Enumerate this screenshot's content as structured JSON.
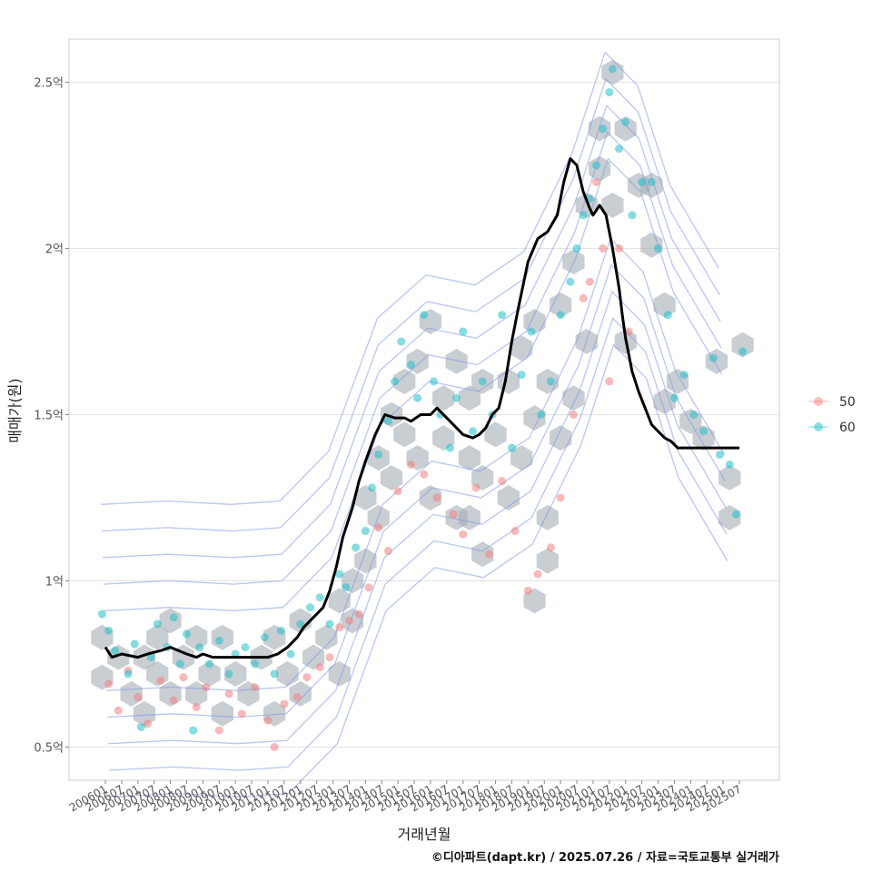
{
  "chart_data": {
    "type": "scatter",
    "title": "",
    "xlabel": "거래년월",
    "ylabel": "매매가(원)",
    "caption": "©디아파트(dapt.kr) / 2025.07.26 / 자료=국토교통부 실거래가",
    "ylim": [
      0.4,
      2.63
    ],
    "y_ticks": [
      {
        "value": 0.5,
        "label": "0.5억"
      },
      {
        "value": 1.0,
        "label": "1억"
      },
      {
        "value": 1.5,
        "label": "1.5억"
      },
      {
        "value": 2.0,
        "label": "2억"
      },
      {
        "value": 2.5,
        "label": "2.5억"
      }
    ],
    "x_range": [
      2005.0,
      2027.2
    ],
    "x_ticks": [
      "200601",
      "200607",
      "200701",
      "200707",
      "200801",
      "200807",
      "200901",
      "200907",
      "201001",
      "201007",
      "201101",
      "201107",
      "201201",
      "201207",
      "201301",
      "201307",
      "201401",
      "201407",
      "201501",
      "201507",
      "201601",
      "201607",
      "201701",
      "201707",
      "201801",
      "201807",
      "201901",
      "201907",
      "202001",
      "202007",
      "202101",
      "202107",
      "202201",
      "202207",
      "202301",
      "202307",
      "202401",
      "202407",
      "202501",
      "202507"
    ],
    "legend": {
      "position": "right",
      "entries": [
        {
          "label": "50",
          "color": "#f08080"
        },
        {
          "label": "60",
          "color": "#20c0c8"
        }
      ]
    },
    "layers": [
      "hexbin",
      "density-contour",
      "points",
      "trend-line"
    ],
    "trend_line": {
      "name": "moving-average",
      "color": "#000000",
      "x": [
        2006.0,
        2006.2,
        2006.5,
        2007.0,
        2007.3,
        2007.7,
        2008.0,
        2008.5,
        2008.8,
        2009.0,
        2009.3,
        2009.6,
        2010.0,
        2010.4,
        2010.7,
        2011.0,
        2011.3,
        2011.6,
        2011.9,
        2012.1,
        2012.4,
        2012.7,
        2012.9,
        2013.1,
        2013.3,
        2013.6,
        2013.8,
        2014.0,
        2014.3,
        2014.6,
        2014.9,
        2015.2,
        2015.4,
        2015.7,
        2016.0,
        2016.2,
        2016.5,
        2016.8,
        2017.0,
        2017.3,
        2017.5,
        2017.7,
        2017.9,
        2018.1,
        2018.3,
        2018.5,
        2018.7,
        2019.0,
        2019.3,
        2019.6,
        2019.9,
        2020.1,
        2020.3,
        2020.5,
        2020.7,
        2020.9,
        2021.0,
        2021.2,
        2021.4,
        2021.6,
        2021.8,
        2021.9,
        2022.0,
        2022.2,
        2022.4,
        2022.6,
        2022.8,
        2023.0,
        2023.2,
        2023.4,
        2023.6,
        2023.8,
        2024.0,
        2024.2,
        2024.4,
        2024.6,
        2024.9,
        2025.2,
        2025.5
      ],
      "y": [
        0.8,
        0.77,
        0.78,
        0.77,
        0.78,
        0.79,
        0.8,
        0.78,
        0.77,
        0.78,
        0.77,
        0.77,
        0.77,
        0.77,
        0.77,
        0.77,
        0.78,
        0.8,
        0.83,
        0.86,
        0.89,
        0.92,
        0.97,
        1.04,
        1.13,
        1.22,
        1.3,
        1.36,
        1.44,
        1.5,
        1.49,
        1.49,
        1.48,
        1.5,
        1.5,
        1.52,
        1.49,
        1.46,
        1.44,
        1.43,
        1.44,
        1.46,
        1.5,
        1.52,
        1.6,
        1.72,
        1.82,
        1.96,
        2.03,
        2.05,
        2.1,
        2.2,
        2.27,
        2.25,
        2.17,
        2.12,
        2.1,
        2.13,
        2.1,
        2.0,
        1.88,
        1.8,
        1.73,
        1.63,
        1.57,
        1.52,
        1.47,
        1.45,
        1.43,
        1.42,
        1.4,
        1.4,
        1.4,
        1.4,
        1.4,
        1.4,
        1.4,
        1.4,
        1.4
      ]
    },
    "hexbin": {
      "color": "#a8b0b8",
      "centers_xy": [
        [
          2005.9,
          0.83
        ],
        [
          2005.9,
          0.71
        ],
        [
          2006.4,
          0.77
        ],
        [
          2006.8,
          0.66
        ],
        [
          2007.2,
          0.6
        ],
        [
          2007.2,
          0.77
        ],
        [
          2007.6,
          0.83
        ],
        [
          2007.6,
          0.72
        ],
        [
          2008.0,
          0.66
        ],
        [
          2008.0,
          0.88
        ],
        [
          2008.4,
          0.77
        ],
        [
          2008.8,
          0.66
        ],
        [
          2008.8,
          0.83
        ],
        [
          2009.2,
          0.72
        ],
        [
          2009.6,
          0.6
        ],
        [
          2009.6,
          0.83
        ],
        [
          2010.0,
          0.72
        ],
        [
          2010.4,
          0.66
        ],
        [
          2010.8,
          0.77
        ],
        [
          2011.2,
          0.6
        ],
        [
          2011.2,
          0.83
        ],
        [
          2011.6,
          0.72
        ],
        [
          2012.0,
          0.66
        ],
        [
          2012.0,
          0.88
        ],
        [
          2012.4,
          0.77
        ],
        [
          2012.8,
          0.83
        ],
        [
          2013.2,
          0.94
        ],
        [
          2013.2,
          0.72
        ],
        [
          2013.6,
          1.0
        ],
        [
          2013.6,
          0.88
        ],
        [
          2014.0,
          1.06
        ],
        [
          2014.0,
          1.25
        ],
        [
          2014.4,
          1.19
        ],
        [
          2014.4,
          1.37
        ],
        [
          2014.8,
          1.31
        ],
        [
          2014.8,
          1.5
        ],
        [
          2015.2,
          1.6
        ],
        [
          2015.2,
          1.44
        ],
        [
          2015.6,
          1.66
        ],
        [
          2015.6,
          1.37
        ],
        [
          2016.0,
          1.78
        ],
        [
          2016.0,
          1.25
        ],
        [
          2016.4,
          1.55
        ],
        [
          2016.4,
          1.43
        ],
        [
          2016.8,
          1.66
        ],
        [
          2016.8,
          1.19
        ],
        [
          2017.2,
          1.55
        ],
        [
          2017.2,
          1.37
        ],
        [
          2017.6,
          1.6
        ],
        [
          2017.6,
          1.31
        ],
        [
          2018.0,
          1.44
        ],
        [
          2018.4,
          1.6
        ],
        [
          2018.4,
          1.25
        ],
        [
          2018.8,
          1.7
        ],
        [
          2018.8,
          1.37
        ],
        [
          2019.2,
          1.78
        ],
        [
          2019.2,
          1.49
        ],
        [
          2019.6,
          1.6
        ],
        [
          2019.6,
          1.19
        ],
        [
          2020.0,
          1.83
        ],
        [
          2020.0,
          1.43
        ],
        [
          2020.4,
          1.96
        ],
        [
          2020.4,
          1.55
        ],
        [
          2020.8,
          2.13
        ],
        [
          2020.8,
          1.72
        ],
        [
          2021.2,
          2.24
        ],
        [
          2021.2,
          2.36
        ],
        [
          2021.6,
          2.53
        ],
        [
          2021.6,
          2.13
        ],
        [
          2022.0,
          2.36
        ],
        [
          2022.0,
          1.72
        ],
        [
          2022.4,
          2.19
        ],
        [
          2022.8,
          2.19
        ],
        [
          2022.8,
          2.01
        ],
        [
          2023.2,
          1.83
        ],
        [
          2023.2,
          1.54
        ],
        [
          2023.6,
          1.6
        ],
        [
          2024.0,
          1.48
        ],
        [
          2024.4,
          1.43
        ],
        [
          2024.8,
          1.66
        ],
        [
          2025.2,
          1.31
        ],
        [
          2025.2,
          1.19
        ],
        [
          2025.6,
          1.71
        ],
        [
          2017.6,
          1.08
        ],
        [
          2019.2,
          0.94
        ],
        [
          2019.6,
          1.06
        ],
        [
          2017.2,
          1.19
        ]
      ]
    },
    "points_50": [
      [
        2006.1,
        0.69
      ],
      [
        2006.4,
        0.61
      ],
      [
        2006.7,
        0.73
      ],
      [
        2007.0,
        0.65
      ],
      [
        2007.3,
        0.57
      ],
      [
        2007.7,
        0.7
      ],
      [
        2008.1,
        0.64
      ],
      [
        2008.4,
        0.71
      ],
      [
        2008.8,
        0.62
      ],
      [
        2009.1,
        0.68
      ],
      [
        2009.5,
        0.55
      ],
      [
        2009.8,
        0.66
      ],
      [
        2010.2,
        0.6
      ],
      [
        2010.6,
        0.68
      ],
      [
        2011.0,
        0.58
      ],
      [
        2011.2,
        0.5
      ],
      [
        2011.5,
        0.63
      ],
      [
        2011.9,
        0.65
      ],
      [
        2012.2,
        0.71
      ],
      [
        2012.6,
        0.74
      ],
      [
        2012.9,
        0.77
      ],
      [
        2013.2,
        0.86
      ],
      [
        2013.5,
        0.88
      ],
      [
        2013.8,
        0.9
      ],
      [
        2014.1,
        0.98
      ],
      [
        2014.4,
        1.16
      ],
      [
        2014.7,
        1.09
      ],
      [
        2015.0,
        1.27
      ],
      [
        2015.4,
        1.35
      ],
      [
        2015.8,
        1.32
      ],
      [
        2016.2,
        1.25
      ],
      [
        2016.7,
        1.2
      ],
      [
        2017.0,
        1.14
      ],
      [
        2017.4,
        1.28
      ],
      [
        2017.8,
        1.08
      ],
      [
        2018.2,
        1.3
      ],
      [
        2018.6,
        1.15
      ],
      [
        2019.0,
        0.97
      ],
      [
        2019.3,
        1.02
      ],
      [
        2019.7,
        1.1
      ],
      [
        2020.0,
        1.25
      ],
      [
        2020.4,
        1.5
      ],
      [
        2020.7,
        1.85
      ],
      [
        2020.9,
        1.9
      ],
      [
        2021.1,
        2.2
      ],
      [
        2021.3,
        2.0
      ],
      [
        2021.5,
        1.6
      ],
      [
        2021.8,
        2.0
      ],
      [
        2022.1,
        1.75
      ]
    ],
    "points_60": [
      [
        2005.9,
        0.9
      ],
      [
        2006.1,
        0.85
      ],
      [
        2006.3,
        0.79
      ],
      [
        2006.7,
        0.72
      ],
      [
        2006.9,
        0.81
      ],
      [
        2007.1,
        0.56
      ],
      [
        2007.4,
        0.77
      ],
      [
        2007.6,
        0.87
      ],
      [
        2007.9,
        0.8
      ],
      [
        2008.1,
        0.89
      ],
      [
        2008.3,
        0.75
      ],
      [
        2008.5,
        0.84
      ],
      [
        2008.7,
        0.55
      ],
      [
        2008.9,
        0.8
      ],
      [
        2009.2,
        0.75
      ],
      [
        2009.5,
        0.82
      ],
      [
        2009.8,
        0.72
      ],
      [
        2010.0,
        0.78
      ],
      [
        2010.3,
        0.8
      ],
      [
        2010.6,
        0.75
      ],
      [
        2010.9,
        0.83
      ],
      [
        2011.2,
        0.72
      ],
      [
        2011.4,
        0.85
      ],
      [
        2011.7,
        0.78
      ],
      [
        2012.0,
        0.87
      ],
      [
        2012.3,
        0.92
      ],
      [
        2012.6,
        0.95
      ],
      [
        2012.9,
        0.87
      ],
      [
        2013.2,
        1.02
      ],
      [
        2013.4,
        0.98
      ],
      [
        2013.7,
        1.1
      ],
      [
        2014.0,
        1.15
      ],
      [
        2014.2,
        1.28
      ],
      [
        2014.4,
        1.38
      ],
      [
        2014.7,
        1.48
      ],
      [
        2014.9,
        1.6
      ],
      [
        2015.1,
        1.72
      ],
      [
        2015.4,
        1.65
      ],
      [
        2015.6,
        1.55
      ],
      [
        2015.8,
        1.8
      ],
      [
        2016.1,
        1.6
      ],
      [
        2016.3,
        1.5
      ],
      [
        2016.6,
        1.4
      ],
      [
        2016.8,
        1.55
      ],
      [
        2017.0,
        1.75
      ],
      [
        2017.3,
        1.45
      ],
      [
        2017.6,
        1.6
      ],
      [
        2017.9,
        1.5
      ],
      [
        2018.2,
        1.8
      ],
      [
        2018.5,
        1.4
      ],
      [
        2018.8,
        1.62
      ],
      [
        2019.1,
        1.75
      ],
      [
        2019.4,
        1.5
      ],
      [
        2019.7,
        1.6
      ],
      [
        2020.0,
        1.8
      ],
      [
        2020.3,
        1.9
      ],
      [
        2020.5,
        2.0
      ],
      [
        2020.7,
        2.1
      ],
      [
        2020.9,
        2.15
      ],
      [
        2021.1,
        2.25
      ],
      [
        2021.3,
        2.36
      ],
      [
        2021.5,
        2.47
      ],
      [
        2021.6,
        2.54
      ],
      [
        2021.8,
        2.3
      ],
      [
        2022.0,
        2.38
      ],
      [
        2022.2,
        2.1
      ],
      [
        2022.5,
        2.2
      ],
      [
        2022.8,
        2.2
      ],
      [
        2023.0,
        2.0
      ],
      [
        2023.3,
        1.8
      ],
      [
        2023.5,
        1.55
      ],
      [
        2023.8,
        1.62
      ],
      [
        2024.1,
        1.5
      ],
      [
        2024.4,
        1.45
      ],
      [
        2024.7,
        1.67
      ],
      [
        2024.9,
        1.38
      ],
      [
        2025.2,
        1.35
      ],
      [
        2025.4,
        1.2
      ],
      [
        2025.6,
        1.69
      ]
    ]
  }
}
